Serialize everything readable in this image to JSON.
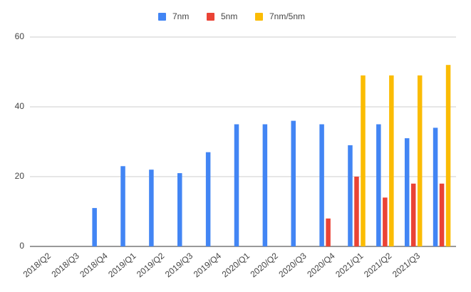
{
  "chart_data": {
    "type": "bar",
    "categories": [
      "2018/Q2",
      "2018/Q3",
      "2018/Q4",
      "2019/Q1",
      "2019/Q2",
      "2019/Q3",
      "2019/Q4",
      "2020/Q1",
      "2020/Q2",
      "2020/Q3",
      "2020/Q4",
      "2021/Q1",
      "2021/Q2",
      "2021/Q3",
      null
    ],
    "series": [
      {
        "name": "7nm",
        "color": "#4285f4",
        "values": [
          0,
          0,
          11,
          23,
          22,
          21,
          27,
          35,
          35,
          36,
          35,
          29,
          35,
          31,
          34
        ]
      },
      {
        "name": "5nm",
        "color": "#ea4335",
        "values": [
          null,
          null,
          null,
          null,
          null,
          null,
          null,
          null,
          null,
          null,
          8,
          20,
          14,
          18,
          18
        ]
      },
      {
        "name": "7nm/5nm",
        "color": "#fbbc04",
        "values": [
          null,
          null,
          null,
          null,
          null,
          null,
          null,
          null,
          null,
          null,
          null,
          49,
          49,
          49,
          52
        ]
      }
    ],
    "ylim": [
      0,
      60
    ],
    "yticks": [
      0,
      20,
      40,
      60
    ],
    "grid": true,
    "legend": "top"
  }
}
